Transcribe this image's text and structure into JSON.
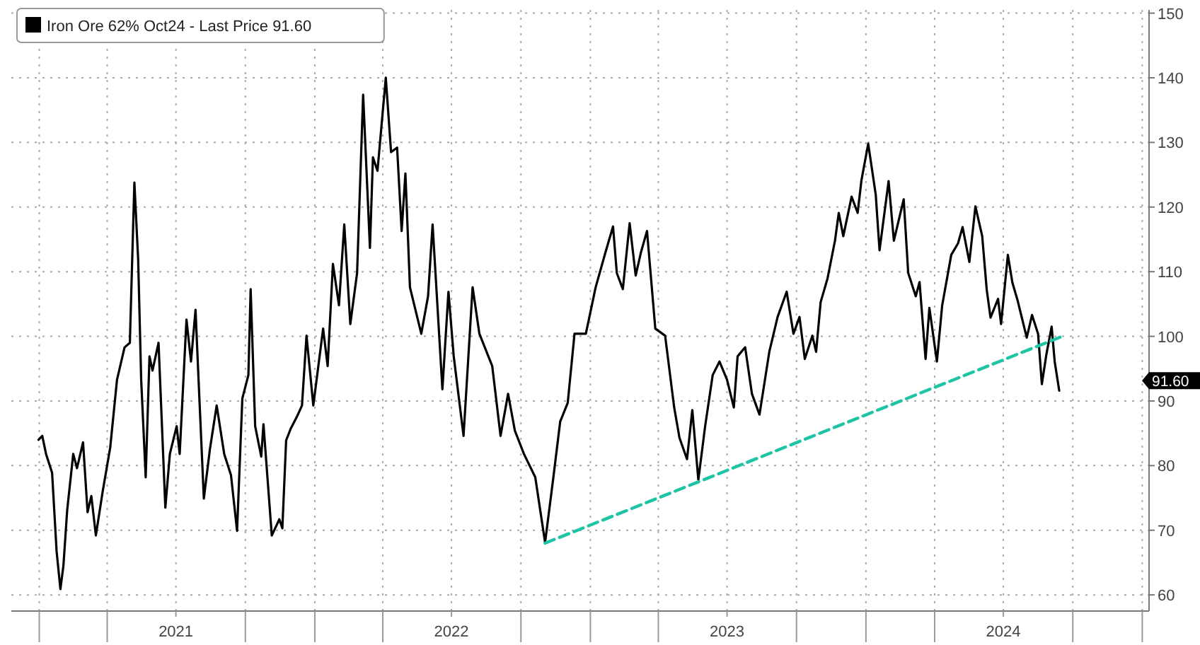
{
  "chart_data": {
    "type": "line",
    "legend": "top left",
    "grid": true,
    "xlim": [
      "2020-11-25",
      "2025-01-10"
    ],
    "xticks": [
      {
        "value": "2021-01-01",
        "label": null
      },
      {
        "value": "2021-04-01",
        "label": null
      },
      {
        "value": "2021-07-01",
        "label": "2021"
      },
      {
        "value": "2021-10-01",
        "label": null
      },
      {
        "value": "2022-01-01",
        "label": null
      },
      {
        "value": "2022-04-01",
        "label": null
      },
      {
        "value": "2022-07-01",
        "label": "2022"
      },
      {
        "value": "2022-10-01",
        "label": null
      },
      {
        "value": "2023-01-01",
        "label": null
      },
      {
        "value": "2023-04-01",
        "label": null
      },
      {
        "value": "2023-07-01",
        "label": "2023"
      },
      {
        "value": "2023-10-01",
        "label": null
      },
      {
        "value": "2024-01-01",
        "label": null
      },
      {
        "value": "2024-04-01",
        "label": null
      },
      {
        "value": "2024-07-01",
        "label": "2024"
      },
      {
        "value": "2024-10-01",
        "label": null
      },
      {
        "value": "2025-01-01",
        "label": null
      }
    ],
    "ylim": [
      57.5,
      150.5
    ],
    "yticks": [
      60,
      70,
      80,
      90,
      100,
      110,
      120,
      130,
      140,
      150
    ],
    "annotations": [
      "91.60"
    ],
    "series": [
      {
        "name": "Iron Ore 62% Oct24 - Last Price 91.60",
        "color": "#000000",
        "line_style": "solid",
        "x": [
          "2020-12-31",
          "2021-01-05",
          "2021-01-10",
          "2021-01-18",
          "2021-01-24",
          "2021-01-29",
          "2021-02-02",
          "2021-02-07",
          "2021-02-15",
          "2021-02-20",
          "2021-02-28",
          "2021-03-06",
          "2021-03-11",
          "2021-03-17",
          "2021-03-26",
          "2021-04-05",
          "2021-04-14",
          "2021-04-24",
          "2021-05-01",
          "2021-05-07",
          "2021-05-12",
          "2021-05-16",
          "2021-05-22",
          "2021-05-27",
          "2021-05-31",
          "2021-06-08",
          "2021-06-17",
          "2021-06-23",
          "2021-07-02",
          "2021-07-06",
          "2021-07-15",
          "2021-07-21",
          "2021-07-27",
          "2021-07-31",
          "2021-08-07",
          "2021-08-15",
          "2021-08-24",
          "2021-09-03",
          "2021-09-12",
          "2021-09-20",
          "2021-09-27",
          "2021-10-05",
          "2021-10-08",
          "2021-10-14",
          "2021-10-22",
          "2021-10-25",
          "2021-11-05",
          "2021-11-15",
          "2021-11-19",
          "2021-11-24",
          "2021-11-30",
          "2021-12-08",
          "2021-12-15",
          "2021-12-21",
          "2021-12-30",
          "2022-01-12",
          "2022-01-18",
          "2022-01-25",
          "2022-02-02",
          "2022-02-09",
          "2022-02-17",
          "2022-02-26",
          "2022-03-06",
          "2022-03-15",
          "2022-03-19",
          "2022-03-25",
          "2022-04-05",
          "2022-04-12",
          "2022-04-20",
          "2022-04-26",
          "2022-05-01",
          "2022-05-07",
          "2022-05-22",
          "2022-05-31",
          "2022-06-06",
          "2022-06-19",
          "2022-06-27",
          "2022-07-04",
          "2022-07-17",
          "2022-07-29",
          "2022-08-07",
          "2022-08-24",
          "2022-09-04",
          "2022-09-14",
          "2022-09-23",
          "2022-10-05",
          "2022-10-20",
          "2022-11-02",
          "2022-11-13",
          "2022-11-22",
          "2022-12-02",
          "2022-12-11",
          "2022-12-26",
          "2023-01-08",
          "2023-01-21",
          "2023-01-31",
          "2023-02-05",
          "2023-02-13",
          "2023-02-22",
          "2023-03-02",
          "2023-03-09",
          "2023-03-17",
          "2023-03-28",
          "2023-04-10",
          "2023-04-22",
          "2023-04-29",
          "2023-05-09",
          "2023-05-16",
          "2023-05-24",
          "2023-06-02",
          "2023-06-12",
          "2023-06-21",
          "2023-07-01",
          "2023-07-10",
          "2023-07-15",
          "2023-07-25",
          "2023-08-03",
          "2023-08-13",
          "2023-08-26",
          "2023-09-06",
          "2023-09-18",
          "2023-09-27",
          "2023-10-05",
          "2023-10-12",
          "2023-10-22",
          "2023-10-27",
          "2023-11-02",
          "2023-11-11",
          "2023-11-21",
          "2023-11-26",
          "2023-12-02",
          "2023-12-13",
          "2023-12-21",
          "2023-12-26",
          "2024-01-04",
          "2024-01-14",
          "2024-01-19",
          "2024-01-31",
          "2024-02-07",
          "2024-02-20",
          "2024-02-26",
          "2024-03-07",
          "2024-03-12",
          "2024-03-20",
          "2024-03-25",
          "2024-04-04",
          "2024-04-11",
          "2024-04-23",
          "2024-05-02",
          "2024-05-08",
          "2024-05-17",
          "2024-05-25",
          "2024-06-03",
          "2024-06-09",
          "2024-06-14",
          "2024-06-24",
          "2024-06-28",
          "2024-07-07",
          "2024-07-13",
          "2024-07-20",
          "2024-08-01",
          "2024-08-08",
          "2024-08-16",
          "2024-08-21",
          "2024-08-27",
          "2024-09-03",
          "2024-09-07",
          "2024-09-13"
        ],
        "values": [
          84.0,
          84.6,
          81.8,
          78.9,
          66.7,
          60.9,
          64.5,
          73.1,
          81.8,
          79.6,
          83.6,
          72.8,
          75.3,
          69.2,
          76.0,
          82.8,
          93.3,
          98.3,
          99.0,
          123.8,
          111.9,
          93.3,
          78.2,
          96.9,
          94.7,
          99.0,
          73.5,
          81.8,
          86.1,
          81.8,
          102.6,
          96.1,
          104.1,
          93.3,
          74.9,
          82.5,
          89.3,
          81.8,
          78.5,
          69.9,
          90.4,
          94.0,
          107.3,
          86.1,
          81.4,
          86.4,
          69.2,
          71.7,
          70.3,
          83.9,
          85.7,
          87.5,
          89.3,
          100.1,
          89.3,
          101.2,
          95.4,
          111.2,
          104.8,
          117.3,
          101.9,
          109.8,
          137.4,
          113.7,
          127.7,
          125.6,
          140.0,
          128.5,
          129.2,
          116.3,
          125.2,
          107.6,
          100.4,
          106.2,
          117.3,
          91.8,
          106.9,
          96.9,
          84.6,
          107.6,
          100.4,
          95.4,
          84.6,
          91.1,
          85.4,
          81.8,
          78.2,
          68.1,
          78.2,
          86.8,
          89.7,
          100.4,
          100.4,
          107.6,
          113.0,
          117.0,
          109.8,
          107.3,
          117.5,
          109.4,
          113.0,
          116.3,
          101.2,
          100.1,
          89.0,
          84.3,
          81.0,
          88.6,
          77.8,
          86.1,
          94.0,
          96.1,
          93.3,
          89.0,
          96.9,
          98.3,
          91.1,
          87.9,
          97.6,
          103.0,
          106.9,
          100.4,
          103.0,
          96.5,
          100.1,
          97.6,
          105.3,
          108.9,
          114.8,
          119.1,
          115.5,
          121.6,
          119.1,
          124.1,
          129.8,
          121.9,
          113.3,
          124.0,
          114.8,
          121.2,
          109.8,
          106.2,
          108.4,
          96.5,
          104.4,
          96.1,
          104.8,
          112.6,
          114.4,
          116.9,
          111.5,
          120.1,
          115.5,
          107.2,
          102.9,
          105.8,
          101.9,
          112.6,
          108.3,
          105.5,
          99.8,
          103.3,
          100.4,
          92.6,
          97.2,
          101.5,
          96.1,
          91.6
        ]
      },
      {
        "type": "line",
        "color": "#1fc4a4",
        "line_style": "dashed",
        "x": [
          "2022-11-02",
          "2024-09-17"
        ],
        "values": [
          68,
          100
        ]
      }
    ]
  }
}
